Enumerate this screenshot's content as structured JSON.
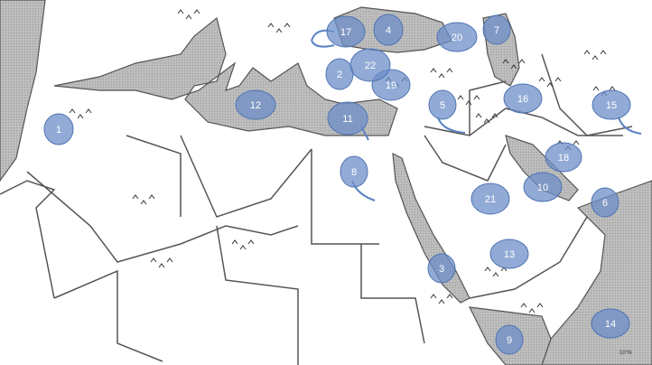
{
  "map": {
    "latitude_label": "10°N",
    "colors": {
      "sea": "#b9b9b9",
      "land": "#ffffff",
      "border": "#555555",
      "marker": "#6d8fc8",
      "marker_stroke": "#4f74b3",
      "arrow": "#5b82c2"
    },
    "markers": [
      {
        "label": "1"
      },
      {
        "label": "2"
      },
      {
        "label": "3"
      },
      {
        "label": "4"
      },
      {
        "label": "5"
      },
      {
        "label": "6"
      },
      {
        "label": "7"
      },
      {
        "label": "8"
      },
      {
        "label": "9"
      },
      {
        "label": "10"
      },
      {
        "label": "11"
      },
      {
        "label": "12"
      },
      {
        "label": "13"
      },
      {
        "label": "14"
      },
      {
        "label": "15"
      },
      {
        "label": "16"
      },
      {
        "label": "17"
      },
      {
        "label": "18"
      },
      {
        "label": "19"
      },
      {
        "label": "20"
      },
      {
        "label": "21"
      },
      {
        "label": "22"
      }
    ]
  }
}
